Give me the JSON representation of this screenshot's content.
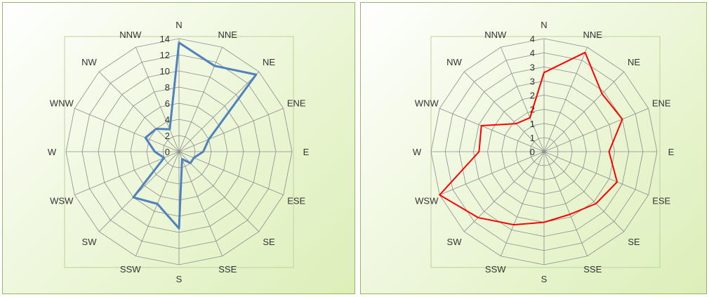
{
  "chart_data": [
    {
      "type": "radar",
      "directions": [
        "N",
        "NNE",
        "NE",
        "ENE",
        "E",
        "ESE",
        "SE",
        "SSE",
        "S",
        "SSW",
        "SW",
        "WSW",
        "W",
        "WNW",
        "NW",
        "NNW"
      ],
      "ticks": [
        "0",
        "2",
        "4",
        "6",
        "8",
        "10",
        "12",
        "14"
      ],
      "rmax": 14,
      "grid": true,
      "series": [
        {
          "color": "#4f81bd",
          "values": [
            13.5,
            11.5,
            13.5,
            4,
            3,
            2,
            2,
            1,
            9.5,
            7,
            8,
            2,
            3,
            4.5,
            4,
            3
          ]
        }
      ]
    },
    {
      "type": "radar",
      "directions": [
        "N",
        "NNE",
        "NE",
        "ENE",
        "E",
        "ESE",
        "SE",
        "SSE",
        "S",
        "SSW",
        "SW",
        "WSW",
        "W",
        "WNW",
        "NW",
        "NNW"
      ],
      "ticks": [
        "0",
        "0.5",
        "1",
        "1.5",
        "2",
        "2.5",
        "3",
        "3.5",
        "4"
      ],
      "tick_display": [
        "0",
        "1",
        "1",
        "2",
        "2",
        "3",
        "3",
        "4",
        "4"
      ],
      "rmax": 4,
      "grid": true,
      "series": [
        {
          "color": "#ff0000",
          "values": [
            2.8,
            3.8,
            2.9,
            3.0,
            2.3,
            2.8,
            2.6,
            2.4,
            2.5,
            2.8,
            3.3,
            4.0,
            2.3,
            2.4,
            1.4,
            1.3
          ]
        }
      ]
    }
  ]
}
